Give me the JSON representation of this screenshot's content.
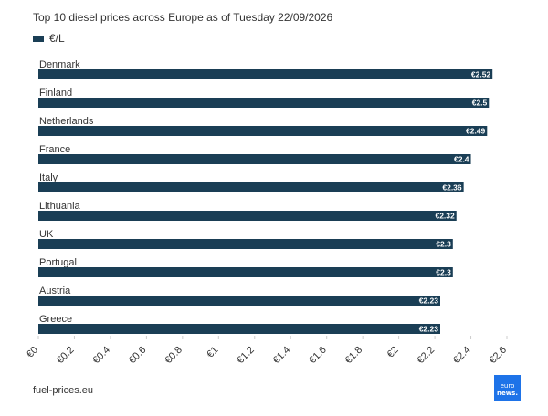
{
  "title": "Top 10 diesel prices across Europe as of Tuesday 22/09/2026",
  "source": "fuel-prices.eu",
  "logo_lines": [
    "euro",
    "news."
  ],
  "colors": {
    "bar": "#1a3e55",
    "bar_label": "#ffffff",
    "grid": "#cccccc",
    "logo": "#1e73e8"
  },
  "chart_data": {
    "type": "bar",
    "orientation": "horizontal",
    "title": "Top 10 diesel prices across Europe as of Tuesday 22/09/2026",
    "categories": [
      "Denmark",
      "Finland",
      "Netherlands",
      "France",
      "Italy",
      "Lithuania",
      "UK",
      "Portugal",
      "Austria",
      "Greece"
    ],
    "series": [
      {
        "name": "€/L",
        "values": [
          2.52,
          2.5,
          2.49,
          2.4,
          2.36,
          2.32,
          2.3,
          2.3,
          2.23,
          2.23
        ]
      }
    ],
    "value_labels": [
      "€2.52",
      "€2.5",
      "€2.49",
      "€2.4",
      "€2.36",
      "€2.32",
      "€2.3",
      "€2.3",
      "€2.23",
      "€2.23"
    ],
    "xlim": [
      0,
      2.6
    ],
    "xticks": [
      0,
      0.2,
      0.4,
      0.6,
      0.8,
      1,
      1.2,
      1.4,
      1.6,
      1.8,
      2,
      2.2,
      2.4,
      2.6
    ],
    "xtick_labels": [
      "€0",
      "€0.2",
      "€0.4",
      "€0.6",
      "€0.8",
      "€1",
      "€1.2",
      "€1.4",
      "€1.6",
      "€1.8",
      "€2",
      "€2.2",
      "€2.4",
      "€2.6"
    ],
    "legend": "top-left",
    "grid": false
  }
}
